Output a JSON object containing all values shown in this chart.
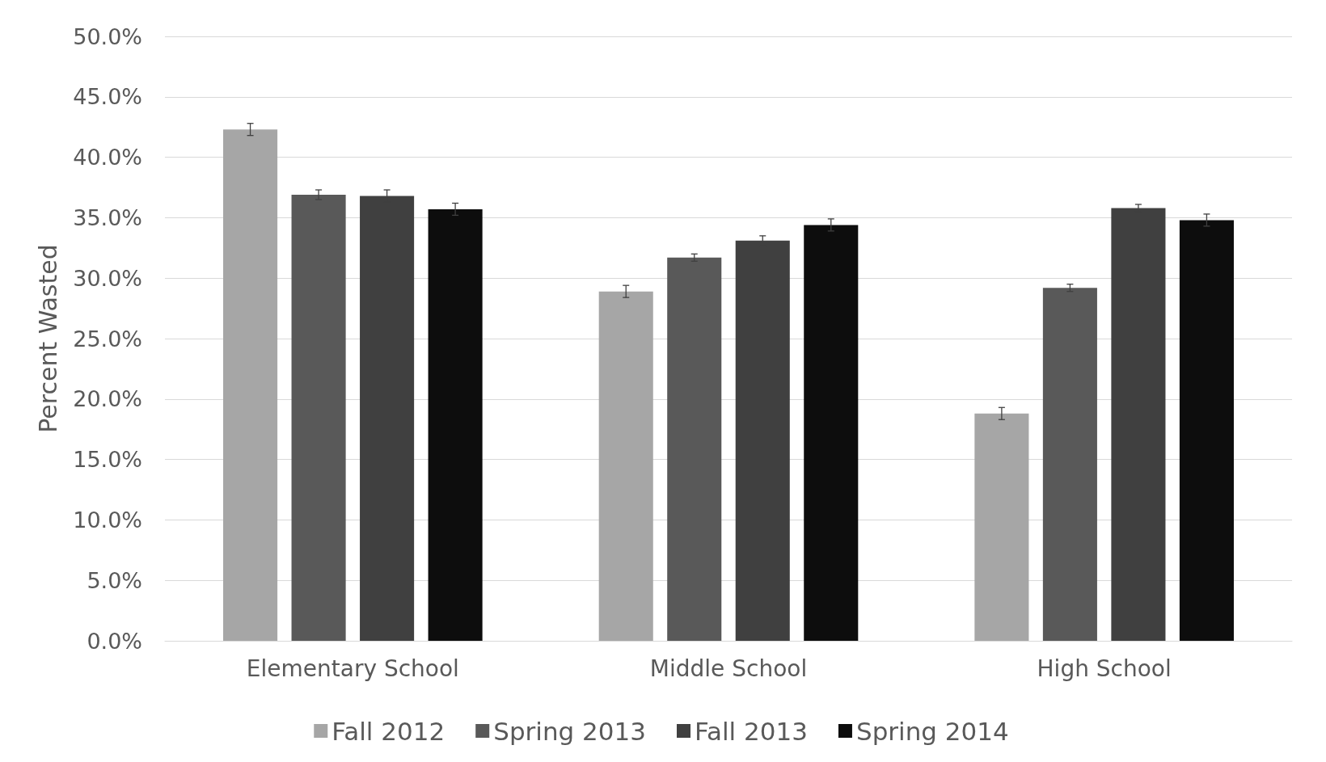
{
  "chart_data": {
    "type": "bar",
    "ylabel": "Percent Wasted",
    "categories": [
      "Elementary School",
      "Middle School",
      "High School"
    ],
    "series": [
      {
        "name": "Fall 2012",
        "color": "#a6a6a6",
        "values": [
          42.3,
          28.9,
          18.8
        ],
        "errors": [
          0.5,
          0.5,
          0.5
        ]
      },
      {
        "name": "Spring 2013",
        "color": "#595959",
        "values": [
          36.9,
          31.7,
          29.2
        ],
        "errors": [
          0.4,
          0.3,
          0.3
        ]
      },
      {
        "name": "Fall 2013",
        "color": "#404040",
        "values": [
          36.8,
          33.1,
          35.8
        ],
        "errors": [
          0.5,
          0.4,
          0.3
        ]
      },
      {
        "name": "Spring 2014",
        "color": "#0d0d0d",
        "values": [
          35.7,
          34.4,
          34.8
        ],
        "errors": [
          0.5,
          0.5,
          0.5
        ]
      }
    ],
    "ylim": [
      0,
      50
    ],
    "yticks": [
      {
        "value": 0,
        "label": "0.0%"
      },
      {
        "value": 5,
        "label": "5.0%"
      },
      {
        "value": 10,
        "label": "10.0%"
      },
      {
        "value": 15,
        "label": "15.0%"
      },
      {
        "value": 20,
        "label": "20.0%"
      },
      {
        "value": 25,
        "label": "25.0%"
      },
      {
        "value": 30,
        "label": "30.0%"
      },
      {
        "value": 35,
        "label": "35.0%"
      },
      {
        "value": 40,
        "label": "40.0%"
      },
      {
        "value": 45,
        "label": "45.0%"
      },
      {
        "value": 50,
        "label": "50.0%"
      }
    ],
    "grid": "y",
    "legend": "bottom"
  }
}
